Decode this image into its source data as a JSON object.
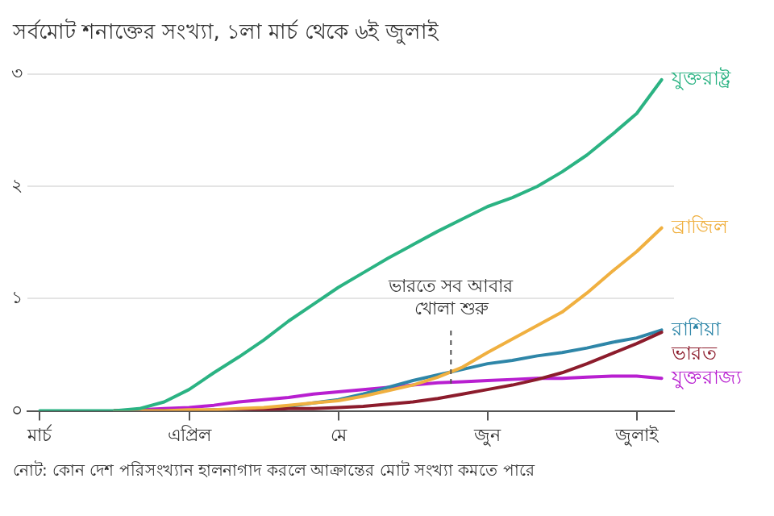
{
  "chart_data": {
    "type": "line",
    "title": "সর্বমোট শনাক্তের সংখ্যা, ১লা মার্চ থেকে ৬ই জুলাই",
    "categories": [
      "মার্চ",
      null,
      null,
      null,
      null,
      null,
      "এপ্রিল",
      null,
      null,
      null,
      null,
      null,
      "মে",
      null,
      null,
      null,
      null,
      null,
      "জুন",
      null,
      null,
      null,
      null,
      null,
      "জুলাই",
      null
    ],
    "ylim": [
      0,
      3
    ],
    "yticks": [
      {
        "value": 0,
        "label": "০"
      },
      {
        "value": 1,
        "label": "১"
      },
      {
        "value": 2,
        "label": "২"
      },
      {
        "value": 3,
        "label": "৩"
      }
    ],
    "grid": "y",
    "legend": false,
    "marker": "none",
    "line_style": "solid",
    "series": [
      {
        "name": "যুক্তরাষ্ট্র",
        "color": "#2bb383",
        "values": [
          0,
          0,
          0,
          0,
          0.02,
          0.08,
          0.19,
          0.34,
          0.48,
          0.63,
          0.8,
          0.95,
          1.1,
          1.23,
          1.36,
          1.48,
          1.6,
          1.71,
          1.82,
          1.9,
          2.0,
          2.13,
          2.28,
          2.46,
          2.65,
          2.95
        ]
      },
      {
        "name": "ব্রাজিল",
        "color": "#f0b040",
        "values": [
          null,
          null,
          null,
          0,
          0,
          0,
          0.01,
          0.01,
          0.02,
          0.03,
          0.05,
          0.07,
          0.09,
          0.13,
          0.18,
          0.23,
          0.3,
          0.39,
          0.52,
          0.64,
          0.76,
          0.88,
          1.05,
          1.24,
          1.42,
          1.63
        ]
      },
      {
        "name": "ভারত",
        "color": "#8c1c2c",
        "values": [
          null,
          null,
          null,
          0,
          0,
          0,
          0,
          0,
          0.01,
          0.01,
          0.02,
          0.02,
          0.03,
          0.04,
          0.06,
          0.08,
          0.11,
          0.15,
          0.19,
          0.23,
          0.28,
          0.34,
          0.42,
          0.51,
          0.6,
          0.7
        ]
      },
      {
        "name": "রাশিয়া",
        "color": "#2e86a8",
        "values": [
          null,
          null,
          null,
          0,
          0,
          0,
          0,
          0.01,
          0.01,
          0.02,
          0.04,
          0.07,
          0.1,
          0.15,
          0.21,
          0.27,
          0.32,
          0.37,
          0.42,
          0.45,
          0.49,
          0.52,
          0.56,
          0.61,
          0.65,
          0.72
        ]
      },
      {
        "name": "যুক্তরাজ্য",
        "color": "#b81fd0",
        "values": [
          null,
          null,
          null,
          0,
          0.01,
          0.02,
          0.03,
          0.05,
          0.08,
          0.1,
          0.12,
          0.15,
          0.17,
          0.19,
          0.21,
          0.23,
          0.25,
          0.26,
          0.27,
          0.28,
          0.29,
          0.29,
          0.3,
          0.31,
          0.31,
          0.29
        ]
      }
    ],
    "annotations": [
      {
        "text": "ভারতে সব আবার খোলা শুরু",
        "y": 0.37
      },
      "নোট: কোন দেশ পরিসংখ্যান হালনাগাদ করলে আক্রান্তের মোট সংখ্যা কমতে পারে"
    ]
  }
}
